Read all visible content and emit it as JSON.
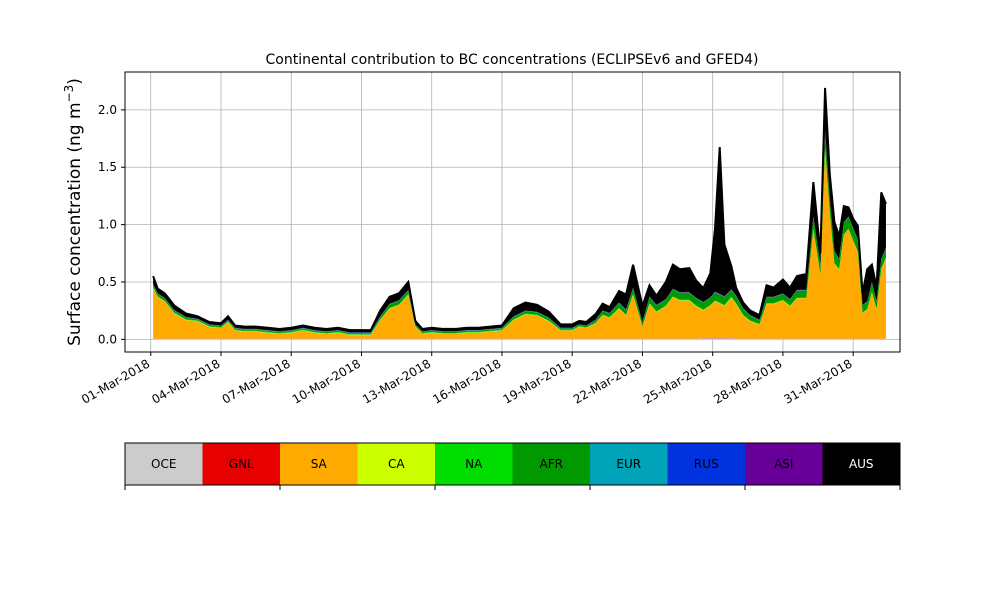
{
  "chart_data": {
    "type": "area",
    "stacked": true,
    "title": "Continental contribution to BC concentrations (ECLIPSEv6 and GFED4)",
    "ylabel": "Surface concentration (ng m",
    "ylabel_sup": "−3",
    "ylabel_close": ")",
    "ylim": [
      -0.11,
      2.33
    ],
    "yticks": [
      0.0,
      0.5,
      1.0,
      1.5,
      2.0
    ],
    "ytick_labels": [
      "0.0",
      "0.5",
      "1.0",
      "1.5",
      "2.0"
    ],
    "xlim": [
      -1.1,
      32.0
    ],
    "xticks": [
      0,
      3,
      6,
      9,
      12,
      15,
      18,
      21,
      24,
      27,
      30
    ],
    "xtick_labels": [
      "01-Mar-2018",
      "04-Mar-2018",
      "07-Mar-2018",
      "10-Mar-2018",
      "13-Mar-2018",
      "16-Mar-2018",
      "19-Mar-2018",
      "22-Mar-2018",
      "25-Mar-2018",
      "28-Mar-2018",
      "31-Mar-2018"
    ],
    "grid": true,
    "x": [
      0.1,
      0.3,
      0.6,
      1.0,
      1.5,
      2.0,
      2.5,
      3.0,
      3.3,
      3.6,
      4.0,
      4.5,
      5.0,
      5.5,
      6.0,
      6.5,
      7.0,
      7.5,
      8.0,
      8.5,
      9.0,
      9.4,
      9.8,
      10.2,
      10.6,
      11.0,
      11.3,
      11.6,
      12.0,
      12.5,
      13.0,
      13.5,
      14.0,
      14.5,
      15.0,
      15.5,
      16.0,
      16.5,
      17.0,
      17.5,
      18.0,
      18.3,
      18.6,
      19.0,
      19.3,
      19.6,
      20.0,
      20.3,
      20.6,
      21.0,
      21.3,
      21.6,
      22.0,
      22.3,
      22.6,
      23.0,
      23.3,
      23.6,
      23.9,
      24.1,
      24.3,
      24.5,
      24.8,
      25.0,
      25.3,
      25.6,
      26.0,
      26.3,
      26.6,
      27.0,
      27.3,
      27.6,
      28.0,
      28.3,
      28.6,
      28.8,
      29.0,
      29.2,
      29.4,
      29.6,
      29.8,
      30.0,
      30.2,
      30.4,
      30.6,
      30.8,
      31.0,
      31.2,
      31.4
    ],
    "series": [
      {
        "name": "OCE",
        "color": "#cccccc",
        "values": [
          0.005,
          0.005,
          0.005,
          0.005,
          0.005,
          0.005,
          0.005,
          0.005,
          0.005,
          0.005,
          0.005,
          0.005,
          0.005,
          0.005,
          0.005,
          0.005,
          0.005,
          0.005,
          0.005,
          0.005,
          0.005,
          0.005,
          0.005,
          0.005,
          0.005,
          0.005,
          0.005,
          0.005,
          0.005,
          0.005,
          0.005,
          0.005,
          0.005,
          0.005,
          0.005,
          0.005,
          0.005,
          0.005,
          0.005,
          0.005,
          0.005,
          0.005,
          0.005,
          0.005,
          0.005,
          0.005,
          0.005,
          0.005,
          0.005,
          0.005,
          0.005,
          0.005,
          0.005,
          0.005,
          0.005,
          0.005,
          0.005,
          0.01,
          0.01,
          0.01,
          0.01,
          0.01,
          0.01,
          0.005,
          0.005,
          0.005,
          0.005,
          0.005,
          0.005,
          0.005,
          0.005,
          0.005,
          0.005,
          0.005,
          0.005,
          0.005,
          0.005,
          0.005,
          0.005,
          0.005,
          0.005,
          0.005,
          0.005,
          0.005,
          0.005,
          0.005,
          0.005,
          0.005,
          0.005
        ]
      },
      {
        "name": "GNL",
        "color": "#e60000",
        "values": [
          0.002,
          0.002,
          0.002,
          0.002,
          0.002,
          0.002,
          0.002,
          0.002,
          0.002,
          0.002,
          0.002,
          0.002,
          0.002,
          0.002,
          0.002,
          0.002,
          0.002,
          0.002,
          0.002,
          0.002,
          0.002,
          0.002,
          0.002,
          0.002,
          0.002,
          0.002,
          0.002,
          0.002,
          0.002,
          0.002,
          0.002,
          0.002,
          0.002,
          0.002,
          0.002,
          0.002,
          0.002,
          0.002,
          0.002,
          0.002,
          0.002,
          0.002,
          0.002,
          0.002,
          0.002,
          0.002,
          0.002,
          0.002,
          0.002,
          0.002,
          0.002,
          0.002,
          0.002,
          0.002,
          0.002,
          0.002,
          0.002,
          0.002,
          0.002,
          0.002,
          0.002,
          0.002,
          0.002,
          0.002,
          0.002,
          0.002,
          0.002,
          0.002,
          0.002,
          0.002,
          0.002,
          0.002,
          0.002,
          0.002,
          0.002,
          0.002,
          0.002,
          0.002,
          0.002,
          0.002,
          0.002,
          0.002,
          0.002,
          0.002,
          0.002,
          0.002,
          0.002,
          0.002,
          0.002
        ]
      },
      {
        "name": "SA",
        "color": "#ffaa00",
        "values": [
          0.44,
          0.36,
          0.32,
          0.22,
          0.16,
          0.15,
          0.1,
          0.09,
          0.14,
          0.07,
          0.06,
          0.06,
          0.05,
          0.04,
          0.05,
          0.07,
          0.05,
          0.04,
          0.05,
          0.03,
          0.03,
          0.03,
          0.16,
          0.26,
          0.29,
          0.38,
          0.1,
          0.04,
          0.05,
          0.04,
          0.04,
          0.05,
          0.05,
          0.06,
          0.07,
          0.16,
          0.21,
          0.2,
          0.15,
          0.07,
          0.07,
          0.1,
          0.09,
          0.13,
          0.2,
          0.18,
          0.26,
          0.2,
          0.38,
          0.1,
          0.3,
          0.23,
          0.28,
          0.36,
          0.33,
          0.33,
          0.28,
          0.24,
          0.28,
          0.32,
          0.3,
          0.28,
          0.35,
          0.3,
          0.2,
          0.15,
          0.12,
          0.3,
          0.3,
          0.33,
          0.28,
          0.35,
          0.35,
          0.95,
          0.55,
          1.65,
          1.1,
          0.65,
          0.6,
          0.9,
          0.95,
          0.85,
          0.75,
          0.22,
          0.25,
          0.4,
          0.25,
          0.6,
          0.7
        ]
      },
      {
        "name": "CA",
        "color": "#ccff00",
        "values": [
          0.003,
          0.003,
          0.003,
          0.003,
          0.003,
          0.003,
          0.003,
          0.003,
          0.003,
          0.003,
          0.003,
          0.003,
          0.003,
          0.003,
          0.003,
          0.003,
          0.003,
          0.003,
          0.003,
          0.003,
          0.003,
          0.003,
          0.003,
          0.003,
          0.003,
          0.003,
          0.003,
          0.003,
          0.003,
          0.003,
          0.003,
          0.003,
          0.003,
          0.003,
          0.003,
          0.003,
          0.003,
          0.003,
          0.003,
          0.003,
          0.003,
          0.003,
          0.003,
          0.003,
          0.003,
          0.003,
          0.003,
          0.003,
          0.003,
          0.003,
          0.003,
          0.003,
          0.003,
          0.003,
          0.003,
          0.003,
          0.003,
          0.003,
          0.003,
          0.003,
          0.003,
          0.003,
          0.003,
          0.003,
          0.003,
          0.003,
          0.003,
          0.003,
          0.003,
          0.003,
          0.003,
          0.003,
          0.003,
          0.003,
          0.003,
          0.003,
          0.003,
          0.003,
          0.003,
          0.003,
          0.003,
          0.003,
          0.003,
          0.003,
          0.003,
          0.003,
          0.003,
          0.003,
          0.003
        ]
      },
      {
        "name": "NA",
        "color": "#00dd00",
        "values": [
          0.005,
          0.005,
          0.005,
          0.005,
          0.005,
          0.005,
          0.005,
          0.005,
          0.005,
          0.005,
          0.005,
          0.005,
          0.005,
          0.005,
          0.005,
          0.005,
          0.005,
          0.005,
          0.005,
          0.005,
          0.005,
          0.005,
          0.005,
          0.005,
          0.005,
          0.005,
          0.005,
          0.005,
          0.005,
          0.005,
          0.005,
          0.005,
          0.005,
          0.005,
          0.005,
          0.005,
          0.005,
          0.005,
          0.005,
          0.005,
          0.005,
          0.005,
          0.005,
          0.005,
          0.005,
          0.005,
          0.005,
          0.005,
          0.005,
          0.005,
          0.005,
          0.005,
          0.005,
          0.005,
          0.005,
          0.005,
          0.005,
          0.005,
          0.005,
          0.005,
          0.005,
          0.005,
          0.005,
          0.005,
          0.005,
          0.005,
          0.005,
          0.005,
          0.005,
          0.005,
          0.005,
          0.005,
          0.005,
          0.005,
          0.005,
          0.005,
          0.005,
          0.005,
          0.005,
          0.005,
          0.005,
          0.005,
          0.005,
          0.005,
          0.005,
          0.005,
          0.005,
          0.005,
          0.005
        ]
      },
      {
        "name": "AFR",
        "color": "#009900",
        "values": [
          0.02,
          0.02,
          0.02,
          0.015,
          0.015,
          0.01,
          0.01,
          0.01,
          0.01,
          0.01,
          0.01,
          0.01,
          0.01,
          0.01,
          0.01,
          0.01,
          0.01,
          0.01,
          0.01,
          0.01,
          0.01,
          0.01,
          0.02,
          0.03,
          0.03,
          0.03,
          0.01,
          0.01,
          0.01,
          0.01,
          0.01,
          0.01,
          0.01,
          0.01,
          0.01,
          0.02,
          0.02,
          0.02,
          0.02,
          0.01,
          0.01,
          0.01,
          0.01,
          0.02,
          0.03,
          0.03,
          0.04,
          0.04,
          0.05,
          0.03,
          0.05,
          0.05,
          0.05,
          0.06,
          0.06,
          0.06,
          0.06,
          0.06,
          0.06,
          0.07,
          0.07,
          0.07,
          0.06,
          0.06,
          0.05,
          0.04,
          0.03,
          0.05,
          0.05,
          0.05,
          0.05,
          0.06,
          0.06,
          0.1,
          0.08,
          0.15,
          0.12,
          0.1,
          0.08,
          0.1,
          0.1,
          0.1,
          0.1,
          0.06,
          0.06,
          0.08,
          0.06,
          0.08,
          0.08
        ]
      },
      {
        "name": "EUR",
        "color": "#00a3b8",
        "values": [
          0.002,
          0.002,
          0.002,
          0.002,
          0.002,
          0.002,
          0.002,
          0.002,
          0.002,
          0.002,
          0.002,
          0.002,
          0.002,
          0.002,
          0.002,
          0.002,
          0.002,
          0.002,
          0.002,
          0.002,
          0.002,
          0.002,
          0.002,
          0.002,
          0.002,
          0.002,
          0.002,
          0.002,
          0.002,
          0.002,
          0.002,
          0.002,
          0.002,
          0.002,
          0.002,
          0.002,
          0.002,
          0.002,
          0.002,
          0.002,
          0.002,
          0.002,
          0.002,
          0.002,
          0.002,
          0.002,
          0.002,
          0.002,
          0.002,
          0.002,
          0.002,
          0.002,
          0.002,
          0.002,
          0.002,
          0.002,
          0.002,
          0.002,
          0.002,
          0.002,
          0.002,
          0.002,
          0.002,
          0.002,
          0.002,
          0.002,
          0.002,
          0.002,
          0.002,
          0.002,
          0.002,
          0.002,
          0.002,
          0.002,
          0.002,
          0.002,
          0.002,
          0.002,
          0.002,
          0.002,
          0.002,
          0.002,
          0.002,
          0.002,
          0.002,
          0.002,
          0.002,
          0.002,
          0.002
        ]
      },
      {
        "name": "RUS",
        "color": "#0033dd",
        "values": [
          0.002,
          0.002,
          0.002,
          0.002,
          0.002,
          0.002,
          0.002,
          0.002,
          0.002,
          0.002,
          0.002,
          0.002,
          0.002,
          0.002,
          0.002,
          0.002,
          0.002,
          0.002,
          0.002,
          0.002,
          0.002,
          0.002,
          0.002,
          0.002,
          0.002,
          0.002,
          0.002,
          0.002,
          0.002,
          0.002,
          0.002,
          0.002,
          0.002,
          0.002,
          0.002,
          0.002,
          0.002,
          0.002,
          0.002,
          0.002,
          0.002,
          0.002,
          0.002,
          0.002,
          0.002,
          0.002,
          0.002,
          0.002,
          0.002,
          0.002,
          0.002,
          0.002,
          0.002,
          0.002,
          0.002,
          0.002,
          0.002,
          0.002,
          0.002,
          0.002,
          0.002,
          0.002,
          0.002,
          0.002,
          0.002,
          0.002,
          0.002,
          0.002,
          0.002,
          0.002,
          0.002,
          0.002,
          0.002,
          0.002,
          0.002,
          0.002,
          0.002,
          0.002,
          0.002,
          0.002,
          0.002,
          0.002,
          0.002,
          0.002,
          0.002,
          0.002,
          0.002,
          0.002,
          0.002
        ]
      },
      {
        "name": "ASI",
        "color": "#660099",
        "values": [
          0.002,
          0.002,
          0.002,
          0.002,
          0.002,
          0.002,
          0.002,
          0.002,
          0.002,
          0.002,
          0.002,
          0.002,
          0.002,
          0.002,
          0.002,
          0.002,
          0.002,
          0.002,
          0.002,
          0.002,
          0.002,
          0.002,
          0.002,
          0.002,
          0.002,
          0.002,
          0.002,
          0.002,
          0.002,
          0.002,
          0.002,
          0.002,
          0.002,
          0.002,
          0.002,
          0.002,
          0.002,
          0.002,
          0.002,
          0.002,
          0.002,
          0.002,
          0.002,
          0.002,
          0.002,
          0.002,
          0.002,
          0.002,
          0.002,
          0.002,
          0.002,
          0.002,
          0.002,
          0.002,
          0.002,
          0.002,
          0.002,
          0.002,
          0.002,
          0.002,
          0.002,
          0.002,
          0.002,
          0.002,
          0.002,
          0.002,
          0.002,
          0.002,
          0.002,
          0.002,
          0.002,
          0.002,
          0.002,
          0.002,
          0.002,
          0.002,
          0.002,
          0.002,
          0.002,
          0.002,
          0.002,
          0.002,
          0.002,
          0.002,
          0.002,
          0.002,
          0.002,
          0.002,
          0.002
        ]
      },
      {
        "name": "AUS",
        "color": "#000000",
        "values": [
          0.07,
          0.04,
          0.04,
          0.04,
          0.03,
          0.02,
          0.02,
          0.02,
          0.03,
          0.02,
          0.02,
          0.02,
          0.02,
          0.02,
          0.02,
          0.02,
          0.02,
          0.02,
          0.02,
          0.02,
          0.02,
          0.02,
          0.05,
          0.06,
          0.06,
          0.07,
          0.03,
          0.02,
          0.02,
          0.02,
          0.02,
          0.02,
          0.02,
          0.02,
          0.02,
          0.07,
          0.07,
          0.06,
          0.05,
          0.03,
          0.03,
          0.03,
          0.03,
          0.05,
          0.06,
          0.05,
          0.1,
          0.13,
          0.2,
          0.14,
          0.1,
          0.08,
          0.15,
          0.21,
          0.2,
          0.21,
          0.15,
          0.12,
          0.21,
          0.55,
          1.28,
          0.45,
          0.2,
          0.07,
          0.05,
          0.04,
          0.04,
          0.1,
          0.08,
          0.12,
          0.1,
          0.12,
          0.14,
          0.3,
          0.1,
          0.37,
          0.2,
          0.25,
          0.2,
          0.14,
          0.08,
          0.08,
          0.12,
          0.1,
          0.28,
          0.15,
          0.12,
          0.58,
          0.38
        ]
      }
    ]
  },
  "legend": {
    "items": [
      {
        "label": "OCE",
        "color": "#cccccc"
      },
      {
        "label": "GNL",
        "color": "#e60000"
      },
      {
        "label": "SA",
        "color": "#ffaa00"
      },
      {
        "label": "CA",
        "color": "#ccff00"
      },
      {
        "label": "NA",
        "color": "#00dd00"
      },
      {
        "label": "AFR",
        "color": "#009900"
      },
      {
        "label": "EUR",
        "color": "#00a3b8"
      },
      {
        "label": "RUS",
        "color": "#0033dd"
      },
      {
        "label": "ASI",
        "color": "#660099"
      },
      {
        "label": "AUS",
        "color": "#000000"
      }
    ]
  }
}
